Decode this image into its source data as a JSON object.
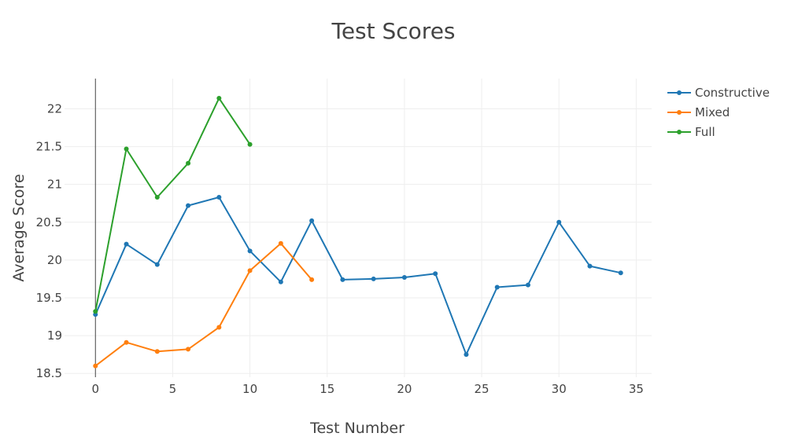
{
  "chart_data": {
    "type": "line",
    "title": "Test Scores",
    "xlabel": "Test Number",
    "ylabel": "Average Score",
    "xlim": [
      -2,
      36
    ],
    "ylim": [
      18.45,
      22.4
    ],
    "xticks": [
      0,
      5,
      10,
      15,
      20,
      25,
      30,
      35
    ],
    "yticks": [
      18.5,
      19,
      19.5,
      20,
      20.5,
      21,
      21.5,
      22
    ],
    "grid": true,
    "legend": "top-right",
    "series": [
      {
        "name": "Constructive",
        "color": "#1f77b4",
        "x": [
          0,
          2,
          4,
          6,
          8,
          10,
          12,
          14,
          16,
          18,
          20,
          22,
          24,
          26,
          28,
          30,
          32,
          34
        ],
        "y": [
          19.28,
          20.21,
          19.94,
          20.72,
          20.83,
          20.12,
          19.71,
          20.52,
          19.74,
          19.75,
          19.77,
          19.82,
          18.75,
          19.64,
          19.67,
          20.5,
          19.92,
          19.83
        ]
      },
      {
        "name": "Mixed",
        "color": "#ff7f0e",
        "x": [
          0,
          2,
          4,
          6,
          8,
          10,
          12,
          14
        ],
        "y": [
          18.6,
          18.91,
          18.79,
          18.82,
          19.11,
          19.86,
          20.22,
          19.74
        ]
      },
      {
        "name": "Full",
        "color": "#2ca02c",
        "x": [
          0,
          2,
          4,
          6,
          8,
          10
        ],
        "y": [
          19.32,
          21.47,
          20.83,
          21.28,
          22.14,
          21.53
        ]
      }
    ]
  }
}
